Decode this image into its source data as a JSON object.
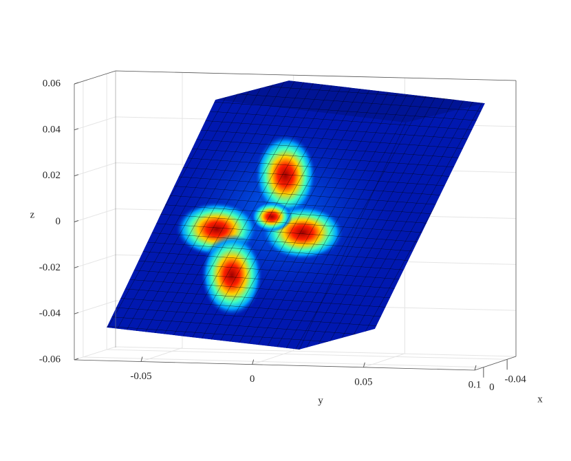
{
  "chart_data": {
    "type": "surface3d",
    "xlabel": "x",
    "ylabel": "y",
    "zlabel": "z",
    "xlim": [
      -0.055,
      0.015
    ],
    "ylim": [
      -0.08,
      0.1
    ],
    "zlim": [
      -0.06,
      0.06
    ],
    "xticks": [
      -0.04,
      0
    ],
    "yticks": [
      -0.05,
      0,
      0.05,
      0.1
    ],
    "zticks": [
      -0.06,
      -0.04,
      -0.02,
      0,
      0.02,
      0.04,
      0.06
    ],
    "grid": true
  }
}
